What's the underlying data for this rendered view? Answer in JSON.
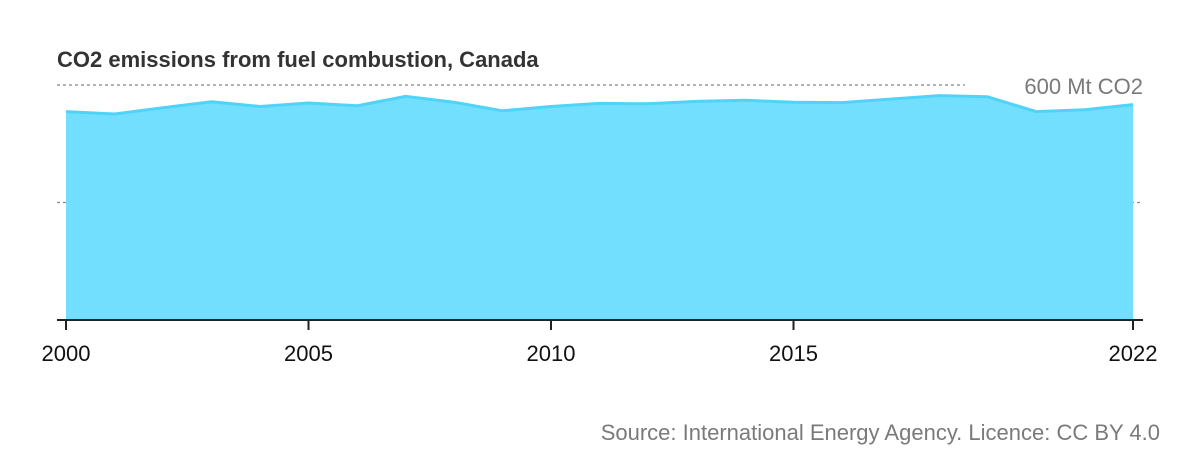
{
  "chart_data": {
    "type": "area",
    "title": "CO2 emissions from fuel combustion, Canada",
    "xlabel": "",
    "ylabel": "",
    "x": [
      2000,
      2001,
      2002,
      2003,
      2004,
      2005,
      2006,
      2007,
      2008,
      2009,
      2010,
      2011,
      2012,
      2013,
      2014,
      2015,
      2016,
      2017,
      2018,
      2019,
      2020,
      2021,
      2022
    ],
    "series": [
      {
        "values": [
          532,
          526,
          542,
          557,
          545,
          554,
          547,
          571,
          556,
          534,
          545,
          553,
          552,
          558,
          561,
          556,
          555,
          564,
          573,
          570,
          532,
          537,
          550
        ]
      }
    ],
    "xlim": [
      2000,
      2022
    ],
    "ylim": [
      0,
      650
    ],
    "x_ticks": [
      "2000",
      "2005",
      "2010",
      "2015",
      "2022"
    ],
    "reference_lines": [
      {
        "value": 600,
        "label": "600 Mt CO2"
      },
      {
        "value": 300,
        "label": ""
      }
    ],
    "grid": false,
    "colors": {
      "fill": "#73dfff",
      "line": "#4fd3f8",
      "axis": "#222222",
      "ref_line": "#888888"
    }
  },
  "source": "Source: International Energy Agency. Licence: CC BY 4.0"
}
